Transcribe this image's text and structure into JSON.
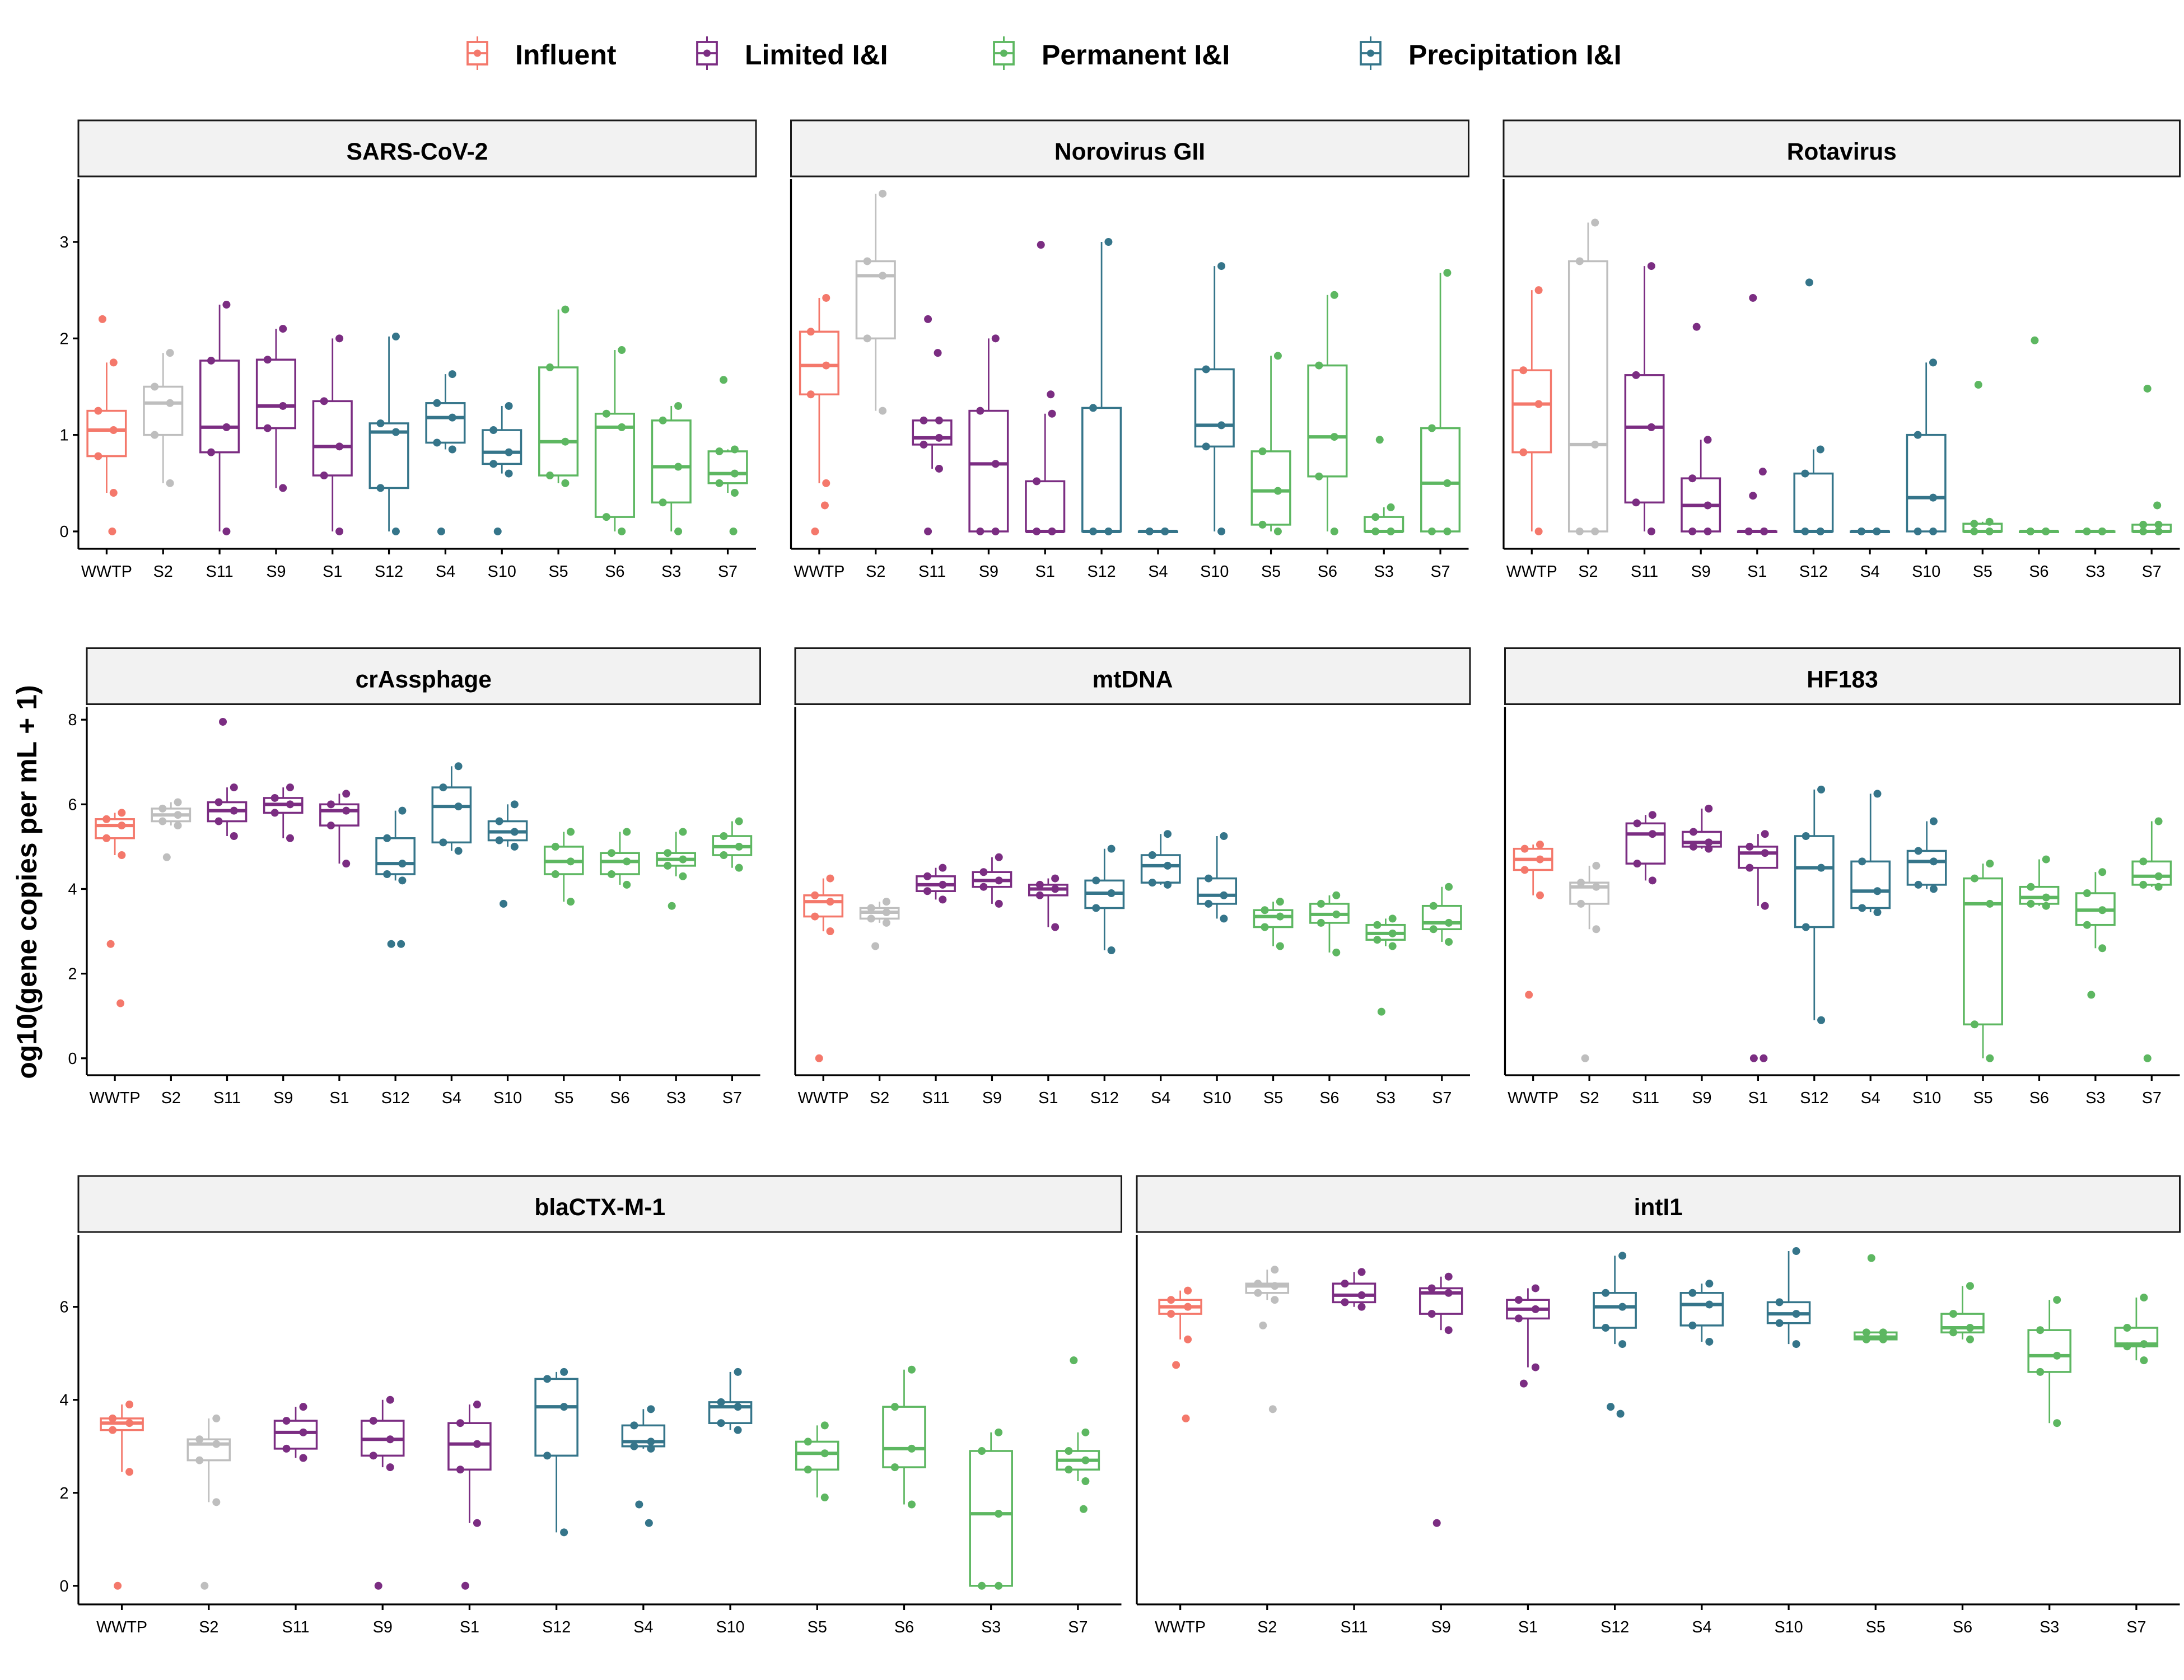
{
  "legend": {
    "position": "top",
    "items": [
      {
        "label": "Influent",
        "color": "#f4786b"
      },
      {
        "label": "Limited I&I",
        "color": "#7b2d82"
      },
      {
        "label": "Permanent I&I",
        "color": "#5db761"
      },
      {
        "label": "Precipitation I&I",
        "color": "#35758a"
      }
    ]
  },
  "y_axis_title": "og10(gene copies per mL + 1)",
  "chart_data": {
    "type": "boxplot",
    "categories": [
      "WWTP",
      "S2",
      "S11",
      "S9",
      "S1",
      "S12",
      "S4",
      "S10",
      "S5",
      "S6",
      "S3",
      "S7"
    ],
    "category_groups": {
      "WWTP": "Influent",
      "S2": "none",
      "S11": "Limited I&I",
      "S9": "Limited I&I",
      "S1": "Limited I&I",
      "S12": "Precipitation I&I",
      "S4": "Precipitation I&I",
      "S10": "Precipitation I&I",
      "S5": "Permanent I&I",
      "S6": "Permanent I&I",
      "S3": "Permanent I&I",
      "S7": "Permanent I&I"
    },
    "group_colors": {
      "Influent": "#f4786b",
      "none": "#bebebe",
      "Limited I&I": "#7b2d82",
      "Permanent I&I": "#5db761",
      "Precipitation I&I": "#35758a"
    },
    "box_stat_order": [
      "lower_whisker",
      "q1",
      "median",
      "q3",
      "upper_whisker"
    ],
    "grid": false,
    "panels": [
      {
        "title": "SARS-CoV-2",
        "ylim": [
          -0.18,
          3.65
        ],
        "yticks": [
          0,
          1,
          2,
          3
        ],
        "boxes": [
          [
            0.4,
            0.78,
            1.05,
            1.25,
            1.75
          ],
          [
            0.5,
            1.0,
            1.33,
            1.5,
            1.85
          ],
          [
            0,
            0.82,
            1.08,
            1.77,
            2.35
          ],
          [
            0.45,
            1.07,
            1.3,
            1.78,
            2.1
          ],
          [
            0,
            0.58,
            0.88,
            1.35,
            2.0
          ],
          [
            0,
            0.45,
            1.03,
            1.12,
            2.02
          ],
          [
            0.85,
            0.92,
            1.18,
            1.33,
            1.63
          ],
          [
            0.6,
            0.7,
            0.82,
            1.05,
            1.3
          ],
          [
            0.5,
            0.58,
            0.93,
            1.7,
            2.3
          ],
          [
            0,
            0.15,
            1.08,
            1.22,
            1.88
          ],
          [
            0,
            0.3,
            0.67,
            1.15,
            1.3
          ],
          [
            0.4,
            0.5,
            0.6,
            0.83,
            0.85
          ]
        ],
        "outliers": [
          [
            2.2,
            0
          ],
          [],
          [],
          [],
          [],
          [],
          [
            0
          ],
          [
            0
          ],
          [],
          [],
          [],
          [
            1.57,
            0
          ]
        ]
      },
      {
        "title": "Norovirus GII",
        "ylim": [
          -0.18,
          3.65
        ],
        "yticks": [],
        "boxes": [
          [
            0.5,
            1.42,
            1.72,
            2.07,
            2.42
          ],
          [
            1.25,
            2.0,
            2.65,
            2.8,
            3.5
          ],
          [
            0.65,
            0.9,
            0.97,
            1.15,
            1.15
          ],
          [
            0,
            0,
            0.7,
            1.25,
            2.0
          ],
          [
            0,
            0,
            0,
            0.52,
            1.22
          ],
          [
            0,
            0,
            0,
            1.28,
            3.0
          ],
          [
            0,
            0,
            0,
            0,
            0
          ],
          [
            0,
            0.88,
            1.1,
            1.68,
            2.75
          ],
          [
            0,
            0.07,
            0.42,
            0.83,
            1.82
          ],
          [
            0,
            0.57,
            0.98,
            1.72,
            2.45
          ],
          [
            0,
            0,
            0,
            0.15,
            0.25
          ],
          [
            0,
            0,
            0.5,
            1.07,
            2.68
          ]
        ],
        "outliers": [
          [
            0,
            0.27
          ],
          [],
          [
            2.2,
            1.85,
            0
          ],
          [],
          [
            2.97,
            1.42
          ],
          [],
          [],
          [],
          [],
          [],
          [
            0.95
          ],
          []
        ]
      },
      {
        "title": "Rotavirus",
        "ylim": [
          -0.18,
          3.65
        ],
        "yticks": [],
        "boxes": [
          [
            0,
            0.82,
            1.32,
            1.67,
            2.5
          ],
          [
            0,
            0,
            0.9,
            2.8,
            3.2
          ],
          [
            0,
            0.3,
            1.08,
            1.62,
            2.75
          ],
          [
            0,
            0,
            0.27,
            0.55,
            0.95
          ],
          [
            0,
            0,
            0,
            0,
            0
          ],
          [
            0,
            0,
            0,
            0.6,
            0.85
          ],
          [
            0,
            0,
            0,
            0,
            0
          ],
          [
            0,
            0,
            0.35,
            1.0,
            1.75
          ],
          [
            0,
            0,
            0,
            0.08,
            0.1
          ],
          [
            0,
            0,
            0,
            0,
            0
          ],
          [
            0,
            0,
            0,
            0,
            0
          ],
          [
            0,
            0,
            0,
            0.07,
            0.07
          ]
        ],
        "outliers": [
          [],
          [],
          [],
          [
            2.12
          ],
          [
            2.42,
            0.62,
            0.37
          ],
          [
            2.58
          ],
          [],
          [],
          [
            1.52
          ],
          [
            1.98
          ],
          [],
          [
            1.48,
            0.27
          ]
        ]
      },
      {
        "title": "crAssphage",
        "ylim": [
          -0.4,
          8.3
        ],
        "yticks": [
          0,
          2,
          4,
          6,
          8
        ],
        "boxes": [
          [
            4.8,
            5.2,
            5.5,
            5.65,
            5.8
          ],
          [
            5.5,
            5.6,
            5.75,
            5.9,
            6.05
          ],
          [
            5.25,
            5.6,
            5.85,
            6.05,
            6.4
          ],
          [
            5.2,
            5.8,
            6.0,
            6.15,
            6.4
          ],
          [
            4.6,
            5.5,
            5.85,
            6.0,
            6.25
          ],
          [
            4.2,
            4.35,
            4.6,
            5.2,
            5.85
          ],
          [
            4.9,
            5.1,
            5.95,
            6.4,
            6.9
          ],
          [
            5.0,
            5.15,
            5.35,
            5.6,
            6.0
          ],
          [
            3.7,
            4.35,
            4.65,
            5.0,
            5.35
          ],
          [
            4.1,
            4.35,
            4.65,
            4.85,
            5.35
          ],
          [
            4.3,
            4.55,
            4.7,
            4.85,
            5.35
          ],
          [
            4.5,
            4.8,
            5.0,
            5.25,
            5.6
          ]
        ],
        "outliers": [
          [
            2.7,
            1.3
          ],
          [
            4.75
          ],
          [
            7.95
          ],
          [],
          [],
          [
            2.7,
            2.7
          ],
          [],
          [
            3.65
          ],
          [],
          [],
          [
            3.6
          ],
          []
        ]
      },
      {
        "title": "mtDNA",
        "ylim": [
          -0.4,
          8.3
        ],
        "yticks": [],
        "boxes": [
          [
            3.0,
            3.35,
            3.7,
            3.85,
            4.25
          ],
          [
            3.2,
            3.3,
            3.45,
            3.55,
            3.7
          ],
          [
            3.75,
            3.95,
            4.1,
            4.3,
            4.5
          ],
          [
            3.65,
            4.05,
            4.2,
            4.4,
            4.75
          ],
          [
            3.1,
            3.85,
            4.0,
            4.1,
            4.25
          ],
          [
            2.55,
            3.55,
            3.9,
            4.2,
            4.95
          ],
          [
            4.1,
            4.15,
            4.55,
            4.8,
            5.3
          ],
          [
            3.3,
            3.65,
            3.85,
            4.25,
            5.25
          ],
          [
            2.65,
            3.1,
            3.35,
            3.5,
            3.7
          ],
          [
            2.5,
            3.2,
            3.4,
            3.65,
            3.85
          ],
          [
            2.65,
            2.8,
            2.95,
            3.15,
            3.3
          ],
          [
            2.75,
            3.05,
            3.2,
            3.6,
            4.05
          ]
        ],
        "outliers": [
          [
            0
          ],
          [
            2.65
          ],
          [],
          [],
          [],
          [],
          [],
          [],
          [],
          [],
          [
            1.1
          ],
          []
        ]
      },
      {
        "title": "HF183",
        "ylim": [
          -0.4,
          8.3
        ],
        "yticks": [],
        "boxes": [
          [
            3.85,
            4.45,
            4.7,
            4.95,
            5.05
          ],
          [
            3.05,
            3.65,
            4.05,
            4.15,
            4.55
          ],
          [
            4.2,
            4.6,
            5.3,
            5.55,
            5.75
          ],
          [
            4.95,
            5.0,
            5.1,
            5.35,
            5.9
          ],
          [
            3.6,
            4.5,
            4.85,
            5.0,
            5.3
          ],
          [
            0.9,
            3.1,
            4.5,
            5.25,
            6.35
          ],
          [
            3.45,
            3.55,
            3.95,
            4.65,
            6.25
          ],
          [
            4.0,
            4.1,
            4.65,
            4.9,
            5.6
          ],
          [
            0,
            0.8,
            3.65,
            4.25,
            4.6
          ],
          [
            3.6,
            3.65,
            3.8,
            4.05,
            4.7
          ],
          [
            2.6,
            3.15,
            3.5,
            3.9,
            4.4
          ],
          [
            4.05,
            4.1,
            4.3,
            4.65,
            5.6
          ]
        ],
        "outliers": [
          [
            1.5
          ],
          [
            0
          ],
          [],
          [],
          [
            0,
            0
          ],
          [],
          [],
          [],
          [],
          [],
          [
            1.5
          ],
          [
            0
          ]
        ]
      },
      {
        "title": "blaCTX-M-1",
        "ylim": [
          -0.4,
          7.55
        ],
        "yticks": [
          0,
          2,
          4,
          6
        ],
        "boxes": [
          [
            2.45,
            3.35,
            3.5,
            3.6,
            3.9
          ],
          [
            1.8,
            2.7,
            3.05,
            3.15,
            3.6
          ],
          [
            2.75,
            2.95,
            3.3,
            3.55,
            3.85
          ],
          [
            2.55,
            2.8,
            3.15,
            3.55,
            4.0
          ],
          [
            1.35,
            2.5,
            3.05,
            3.5,
            3.9
          ],
          [
            1.15,
            2.8,
            3.85,
            4.45,
            4.6
          ],
          [
            2.95,
            3.0,
            3.1,
            3.45,
            3.8
          ],
          [
            3.35,
            3.5,
            3.85,
            3.95,
            4.6
          ],
          [
            1.9,
            2.5,
            2.85,
            3.1,
            3.45
          ],
          [
            1.75,
            2.55,
            2.95,
            3.85,
            4.65
          ],
          [
            0,
            0,
            1.55,
            2.9,
            3.3
          ],
          [
            2.25,
            2.5,
            2.7,
            2.9,
            3.3
          ]
        ],
        "outliers": [
          [
            0
          ],
          [
            0
          ],
          [],
          [
            0
          ],
          [
            0
          ],
          [],
          [
            1.75,
            1.35
          ],
          [],
          [],
          [],
          [],
          [
            4.85,
            1.65
          ]
        ]
      },
      {
        "title": "intI1",
        "ylim": [
          -0.4,
          7.55
        ],
        "yticks": [],
        "boxes": [
          [
            5.3,
            5.85,
            6.0,
            6.15,
            6.35
          ],
          [
            6.15,
            6.3,
            6.45,
            6.5,
            6.8
          ],
          [
            6.0,
            6.1,
            6.25,
            6.5,
            6.75
          ],
          [
            5.5,
            5.85,
            6.3,
            6.4,
            6.65
          ],
          [
            4.7,
            5.75,
            5.95,
            6.15,
            6.4
          ],
          [
            5.2,
            5.55,
            6.0,
            6.3,
            7.1
          ],
          [
            5.25,
            5.6,
            6.05,
            6.3,
            6.5
          ],
          [
            5.2,
            5.65,
            5.85,
            6.1,
            7.2
          ],
          [
            5.3,
            5.3,
            5.35,
            5.45,
            5.45
          ],
          [
            5.3,
            5.45,
            5.55,
            5.85,
            6.45
          ],
          [
            3.5,
            4.6,
            4.95,
            5.5,
            6.15
          ],
          [
            4.85,
            5.15,
            5.2,
            5.55,
            6.2
          ]
        ],
        "outliers": [
          [
            4.75,
            3.6
          ],
          [
            5.6,
            3.8
          ],
          [],
          [
            1.35
          ],
          [
            4.35
          ],
          [
            3.85,
            3.7
          ],
          [],
          [],
          [
            7.05
          ],
          [],
          [],
          []
        ]
      }
    ]
  }
}
